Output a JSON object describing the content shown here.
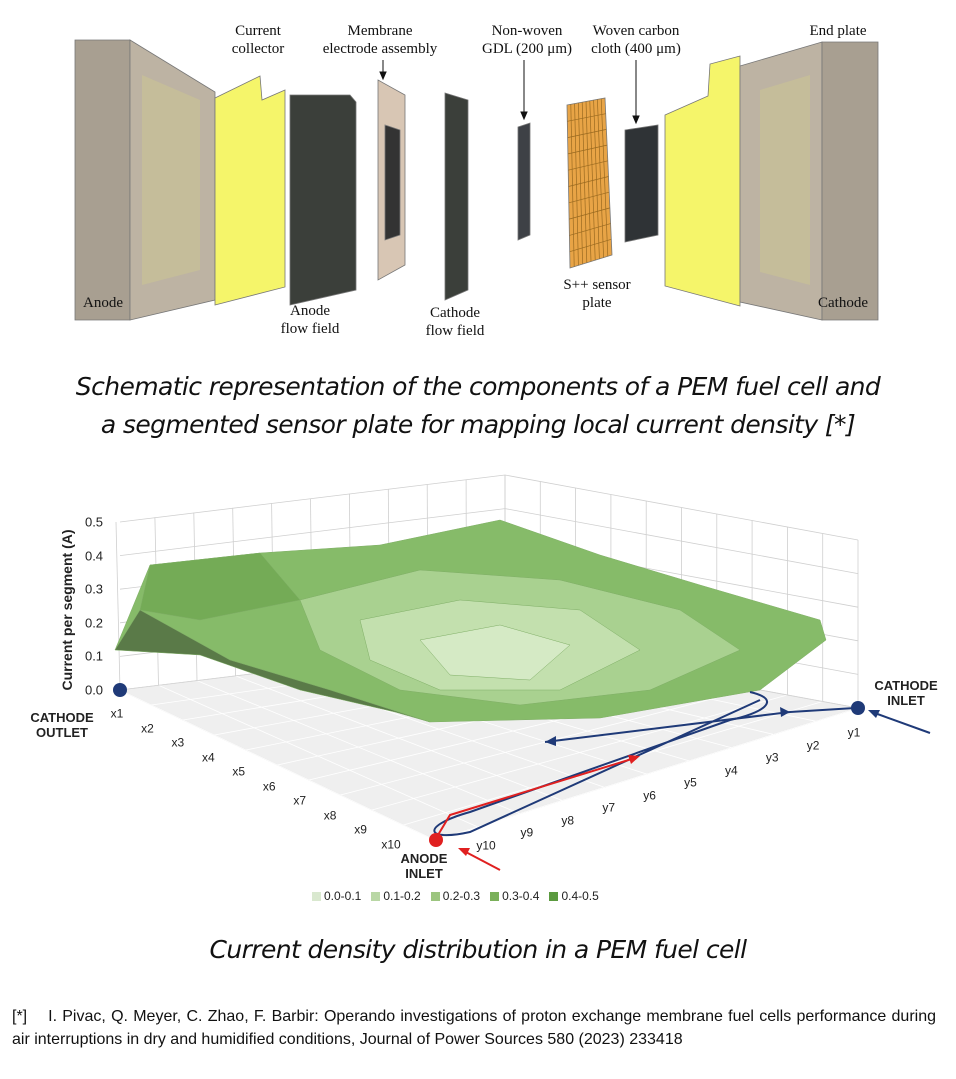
{
  "schematic": {
    "labels": [
      "Current\ncollector",
      "Membrane\nelectrode assembly",
      "Non-woven\nGDL (200 μm)",
      "Woven carbon\ncloth (400 μm)",
      "End plate",
      "Anode",
      "Anode\nflow field",
      "Cathode\nflow field",
      "S++ sensor\nplate",
      "Cathode"
    ]
  },
  "caption_1": "Schematic representation of the components of a PEM fuel cell and\na segmented sensor plate for mapping local current density [*]",
  "chart": {
    "z_axis_title": "Current per segment (A)",
    "z_ticks": [
      "0.0",
      "0.1",
      "0.2",
      "0.3",
      "0.4",
      "0.5"
    ],
    "x_labels": [
      "x1",
      "x2",
      "x3",
      "x4",
      "x5",
      "x6",
      "x7",
      "x8",
      "x9",
      "x10"
    ],
    "y_labels": [
      "y1",
      "y2",
      "y3",
      "y4",
      "y5",
      "y6",
      "y7",
      "y8",
      "y9",
      "y10"
    ],
    "cathode_outlet": "CATHODE\nOUTLET",
    "cathode_inlet": "CATHODE\nINLET",
    "anode_inlet": "ANODE\nINLET",
    "legend": [
      {
        "label": "0.0-0.1",
        "color": "#d9e8cf"
      },
      {
        "label": "0.1-0.2",
        "color": "#b9d7a5"
      },
      {
        "label": "0.2-0.3",
        "color": "#9cc57f"
      },
      {
        "label": "0.3-0.4",
        "color": "#7ab05a"
      },
      {
        "label": "0.4-0.5",
        "color": "#5b9a3f"
      }
    ]
  },
  "caption_2": "Current density distribution in a PEM fuel cell",
  "reference": {
    "marker": "[*]",
    "text": "I. Pivac, Q. Meyer, C. Zhao, F. Barbir: Operando investigations of proton exchange membrane fuel cells performance during air interruptions in dry and humidified conditions, Journal of Power Sources 580 (2023) 233418"
  }
}
